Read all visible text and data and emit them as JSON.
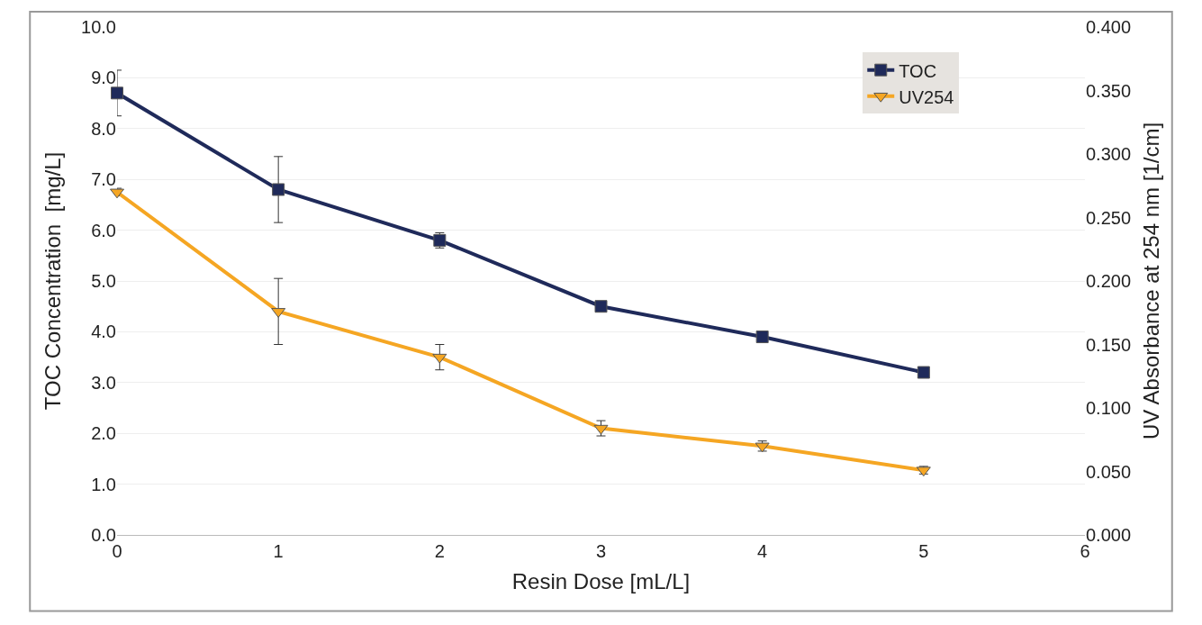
{
  "chart_data": {
    "type": "line",
    "xlabel": "Resin Dose [mL/L]",
    "ylabel": "TOC Concentration  [mg/L]",
    "y2label": "UV Absorbance at 254 nm [1/cm]",
    "x": [
      0,
      1,
      2,
      3,
      4,
      5
    ],
    "series": [
      {
        "name": "TOC",
        "color": "#1f2a5a",
        "marker": "square",
        "values": [
          8.7,
          6.8,
          5.8,
          4.5,
          3.9,
          3.2
        ],
        "errors": [
          0.45,
          0.65,
          0.15,
          null,
          null,
          null
        ]
      },
      {
        "name": "UV254",
        "color": "#f5a623",
        "marker": "triangle",
        "axis": "y2",
        "values": [
          0.27,
          0.176,
          0.14,
          0.084,
          0.07,
          0.051
        ],
        "errors": [
          0.003,
          0.026,
          0.01,
          0.006,
          0.004,
          0.003
        ]
      }
    ],
    "xlim": [
      0,
      6
    ],
    "xticks": [
      0,
      1,
      2,
      3,
      4,
      5,
      6
    ],
    "ylim": [
      0,
      10
    ],
    "yticks": [
      {
        "value": 0,
        "label": "0.0"
      },
      {
        "value": 1,
        "label": "1.0"
      },
      {
        "value": 2,
        "label": "2.0"
      },
      {
        "value": 3,
        "label": "3.0"
      },
      {
        "value": 4,
        "label": "4.0"
      },
      {
        "value": 5,
        "label": "5.0"
      },
      {
        "value": 6,
        "label": "6.0"
      },
      {
        "value": 7,
        "label": "7.0"
      },
      {
        "value": 8,
        "label": "8.0"
      },
      {
        "value": 9,
        "label": "9.0"
      },
      {
        "value": 10,
        "label": "10.0"
      }
    ],
    "y2lim": [
      0,
      0.4
    ],
    "y2ticks": [
      {
        "value": 0,
        "label": "0.000"
      },
      {
        "value": 0.05,
        "label": "0.050"
      },
      {
        "value": 0.1,
        "label": "0.100"
      },
      {
        "value": 0.15,
        "label": "0.150"
      },
      {
        "value": 0.2,
        "label": "0.200"
      },
      {
        "value": 0.25,
        "label": "0.250"
      },
      {
        "value": 0.3,
        "label": "0.300"
      },
      {
        "value": 0.35,
        "label": "0.350"
      },
      {
        "value": 0.4,
        "label": "0.400"
      }
    ],
    "grid": "y",
    "legend": "top right",
    "line_style": "solid"
  }
}
